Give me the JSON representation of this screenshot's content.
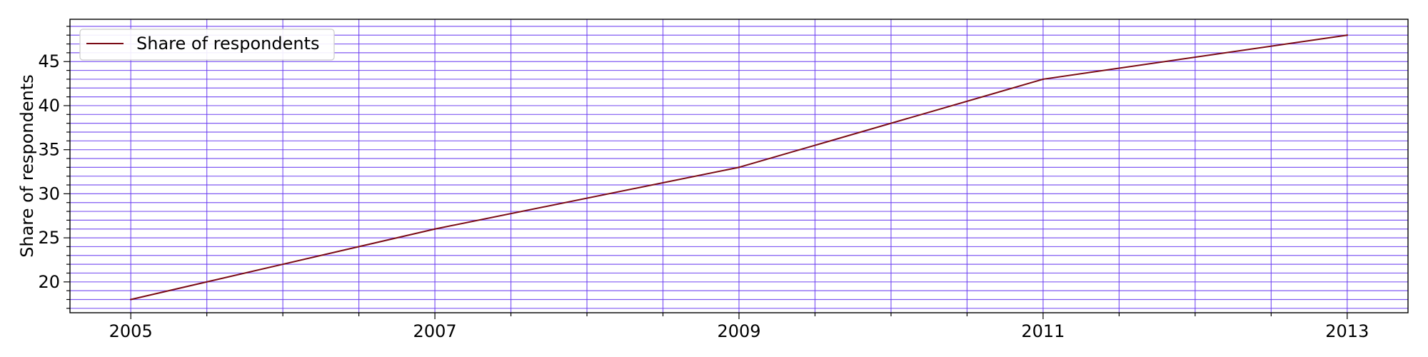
{
  "chart_data": {
    "type": "line",
    "title": "",
    "xlabel": "",
    "ylabel": "Share of respondents",
    "x": [
      2005,
      2007,
      2009,
      2011,
      2013
    ],
    "series": [
      {
        "name": "Share of respondents",
        "values": [
          18,
          26,
          33,
          43,
          48
        ],
        "color": "#7a0a14"
      }
    ],
    "xlim": [
      2004.6,
      2013.4
    ],
    "ylim": [
      16.5,
      49.8
    ],
    "xticks": [
      2005,
      2007,
      2009,
      2011,
      2013
    ],
    "xtick_labels": [
      "2005",
      "2007",
      "2009",
      "2011",
      "2013"
    ],
    "xminor_step": 0.5,
    "yticks": [
      20,
      25,
      30,
      35,
      40,
      45
    ],
    "ytick_labels": [
      "20",
      "25",
      "30",
      "35",
      "40",
      "45"
    ],
    "yminor_step": 1,
    "grid": true,
    "grid_color": "#6a3df0",
    "legend_position": "upper-left"
  }
}
